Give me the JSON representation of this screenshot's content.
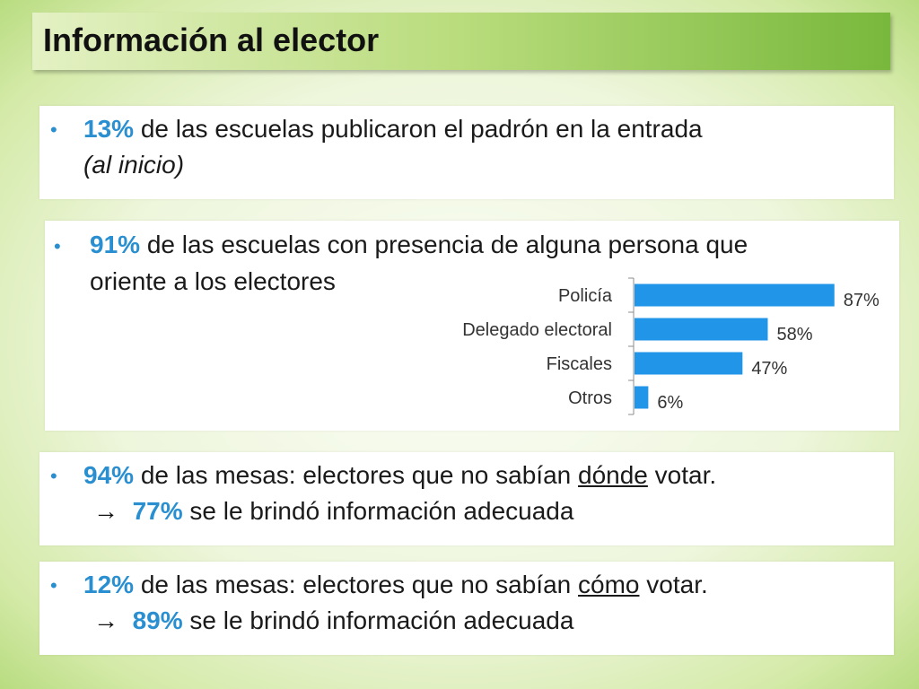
{
  "title": "Información al elector",
  "box1": {
    "pct": "13%",
    "text": " de las escuelas publicaron el padrón en la entrada",
    "line2": "(al inicio)"
  },
  "box2": {
    "pct": "91%",
    "text": " de las escuelas con presencia de alguna persona que",
    "line2": "oriente a los electores"
  },
  "box3": {
    "pct": "94%",
    "text_before": " de las mesas: electores que no sabían ",
    "underlined": "dónde",
    "text_after": " votar.",
    "arrow": "→",
    "sub_pct": "77%",
    "sub_text": " se le brindó información adecuada"
  },
  "box4": {
    "pct": "12%",
    "text_before": " de las mesas: electores que no sabían ",
    "underlined": "cómo",
    "text_after": " votar.",
    "arrow": "→",
    "sub_pct": "89%",
    "sub_text": " se le brindó información adecuada"
  },
  "bullet_symbol": "•",
  "chart_data": {
    "type": "bar",
    "orientation": "horizontal",
    "categories": [
      "Policía",
      "Delegado electoral",
      "Fiscales",
      "Otros"
    ],
    "values": [
      87,
      58,
      47,
      6
    ],
    "value_labels": [
      "87%",
      "58%",
      "47%",
      "6%"
    ],
    "xlim": [
      0,
      100
    ],
    "bar_color": "#2196e8",
    "title": "",
    "xlabel": "",
    "ylabel": ""
  }
}
